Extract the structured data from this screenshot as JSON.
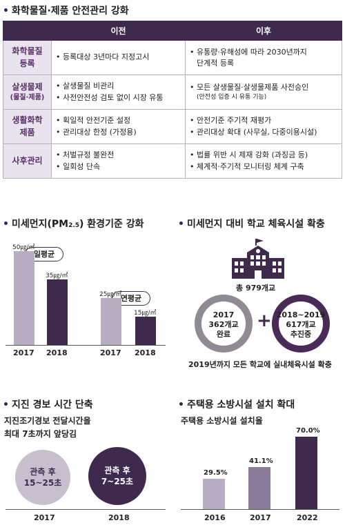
{
  "chem": {
    "title": "화학물질·제품 안전관리 강화",
    "col_before": "이전",
    "col_after": "이후",
    "rows": [
      {
        "cat": [
          "화학물질",
          "등록"
        ],
        "before": [
          "등록대상 3년마다 지정고시"
        ],
        "after_lines": [
          "유통량·유해성에 따라 2030년까지",
          "단계적 등록"
        ]
      },
      {
        "cat": [
          "살생물제",
          "(물질·제품)"
        ],
        "before": [
          "살생물질 비관리",
          "사전안전성 검토 없이 시장 유통"
        ],
        "after_lines": [
          "모든 살생물질·살생물제품 사전승인",
          "(안전성 입증 시 유통 기능)"
        ]
      },
      {
        "cat": [
          "생활화학",
          "제품"
        ],
        "before": [
          "획일적 안전기준 설정",
          "관리대상 한정 (가정용)"
        ],
        "after_lines": [
          "안전기준 주기적 재평가",
          "관리대상 확대 (사무실, 다중이용시설)"
        ]
      },
      {
        "cat": [
          "사후관리"
        ],
        "before": [
          "처벌규정 불완전",
          "일회성 단속"
        ],
        "after_lines": [
          "법률 위반 시 제재 강화 (과징금 등)",
          "체계적·주기적 모니터링 체계 구축"
        ]
      }
    ]
  },
  "pm": {
    "title_main": "미세먼지(PM",
    "title_sub": "2.5",
    "title_end": ") 환경기준 강화",
    "annual_daily": "일평균",
    "annual_yearly": "연평균"
  },
  "school": {
    "title": "미세먼지 대비 학교 체육시설 확충",
    "total": "총 979개교",
    "done_year": "2017",
    "done_count": "362개교",
    "done_status": "완료",
    "plus": "+",
    "prog_year": "2018~2019",
    "prog_count": "617개교",
    "prog_status": "추진중",
    "note": "2019년까지 모든 학교에 실내체육시설 확충"
  },
  "quake": {
    "title": "지진 경보 시간 단축",
    "desc_1": "지진조기경보 전달시간을",
    "desc_2": "최대 7초까지 앞당김",
    "c1_line1": "관측 후",
    "c1_line2": "15~25초",
    "c2_line1": "관측 후",
    "c2_line2": "7~25초",
    "y1": "2017",
    "y2": "2018"
  },
  "fire": {
    "title": "주택용 소방시설 설치 확대",
    "subtitle": "주택용 소방시설 설치율"
  },
  "chart_data": [
    {
      "type": "bar",
      "title": "일평균",
      "categories": [
        "2017",
        "2018"
      ],
      "values": [
        50,
        35
      ],
      "labels": [
        "50㎍/㎥",
        "35㎍/㎥"
      ],
      "colors": [
        "#b9adc3",
        "#3f2a4e"
      ],
      "ylim": [
        0,
        55
      ]
    },
    {
      "type": "bar",
      "title": "연평균",
      "categories": [
        "2017",
        "2018"
      ],
      "values": [
        25,
        15
      ],
      "labels": [
        "25㎍/㎥",
        "15㎍/㎥"
      ],
      "colors": [
        "#b9adc3",
        "#3f2a4e"
      ],
      "ylim": [
        0,
        55
      ]
    },
    {
      "type": "bar",
      "categories": [
        "2016",
        "2017",
        "2022"
      ],
      "values": [
        29.5,
        41.1,
        70.0
      ],
      "labels": [
        "29.5%",
        "41.1%",
        "70.0%"
      ],
      "colors": [
        "#b9adc3",
        "#8b7a99",
        "#3f2a4e"
      ],
      "ylim": [
        0,
        75
      ]
    }
  ]
}
